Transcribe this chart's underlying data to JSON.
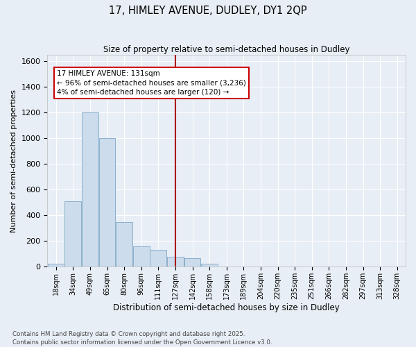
{
  "title1": "17, HIMLEY AVENUE, DUDLEY, DY1 2QP",
  "title2": "Size of property relative to semi-detached houses in Dudley",
  "xlabel": "Distribution of semi-detached houses by size in Dudley",
  "ylabel": "Number of semi-detached properties",
  "bin_labels": [
    "18sqm",
    "34sqm",
    "49sqm",
    "65sqm",
    "80sqm",
    "96sqm",
    "111sqm",
    "127sqm",
    "142sqm",
    "158sqm",
    "173sqm",
    "189sqm",
    "204sqm",
    "220sqm",
    "235sqm",
    "251sqm",
    "266sqm",
    "282sqm",
    "297sqm",
    "313sqm",
    "328sqm"
  ],
  "bar_heights": [
    25,
    510,
    1200,
    1000,
    350,
    160,
    130,
    80,
    65,
    25,
    5,
    3,
    1,
    1,
    1,
    0,
    0,
    0,
    0,
    0,
    0
  ],
  "bar_color": "#ccdcec",
  "bar_edgecolor": "#8ab0cc",
  "bg_color": "#e8eef5",
  "grid_color": "#ffffff",
  "vline_color": "#aa0000",
  "annotation_text": "17 HIMLEY AVENUE: 131sqm\n← 96% of semi-detached houses are smaller (3,236)\n4% of semi-detached houses are larger (120) →",
  "annotation_box_color": "#ffffff",
  "annotation_box_edgecolor": "#cc0000",
  "ylim": [
    0,
    1650
  ],
  "yticks": [
    0,
    200,
    400,
    600,
    800,
    1000,
    1200,
    1400,
    1600
  ],
  "footer_line1": "Contains HM Land Registry data © Crown copyright and database right 2025.",
  "footer_line2": "Contains public sector information licensed under the Open Government Licence v3.0."
}
